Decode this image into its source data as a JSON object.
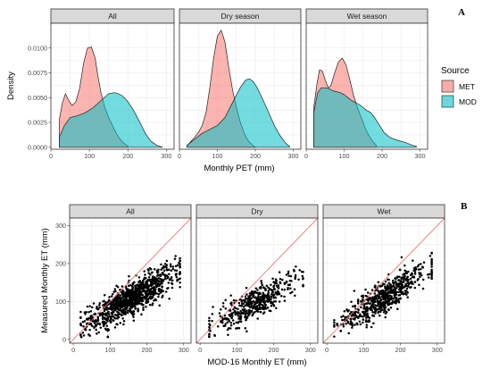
{
  "colors": {
    "met": "#F8766D",
    "mod": "#00BFC4",
    "strip_bg": "#d9d9d9",
    "panel_border": "#333333",
    "grid": "#ebebeb",
    "point": "#000000",
    "one_to_one": "#e8777b"
  },
  "panel_labels": {
    "a": "A",
    "b": "B"
  },
  "chart_data": [
    {
      "type": "area",
      "id": "density",
      "facets": [
        "All",
        "Dry season",
        "Wet season"
      ],
      "xlabel": "Monthly PET (mm)",
      "ylabel": "Density",
      "xlim": [
        0,
        320
      ],
      "ylim": [
        -0.0002,
        0.0125
      ],
      "xticks": [
        0,
        100,
        200,
        300
      ],
      "yticks": [
        0,
        0.0025,
        0.005,
        0.0075,
        0.01
      ],
      "ytick_labels": [
        "0.0000",
        "0.0025",
        "0.0050",
        "0.0075",
        "0.0100"
      ],
      "grid": true,
      "legend": {
        "title": "Source",
        "position": "right",
        "entries": [
          {
            "name": "MET",
            "color": "#F8766D"
          },
          {
            "name": "MOD",
            "color": "#00BFC4"
          }
        ]
      },
      "series_by_facet": [
        [
          {
            "name": "MET",
            "x": [
              22,
              30,
              38,
              45,
              55,
              65,
              75,
              85,
              95,
              105,
              115,
              122,
              130,
              140,
              150,
              160,
              170,
              180,
              190,
              200
            ],
            "y": [
              0.0028,
              0.0045,
              0.0054,
              0.0048,
              0.0042,
              0.0046,
              0.006,
              0.0085,
              0.01,
              0.0101,
              0.009,
              0.0072,
              0.0055,
              0.004,
              0.003,
              0.0022,
              0.0014,
              0.0008,
              0.0004,
              0.0001
            ]
          },
          {
            "name": "MOD",
            "x": [
              22,
              35,
              50,
              70,
              90,
              110,
              130,
              150,
              165,
              175,
              185,
              200,
              215,
              230,
              245,
              260,
              275,
              290
            ],
            "y": [
              0.001,
              0.0022,
              0.003,
              0.0032,
              0.0035,
              0.004,
              0.0047,
              0.0054,
              0.0055,
              0.0054,
              0.0052,
              0.0046,
              0.0037,
              0.0026,
              0.0014,
              0.0006,
              0.0002,
              0.0
            ]
          }
        ],
        [
          {
            "name": "MET",
            "x": [
              20,
              30,
              40,
              50,
              60,
              70,
              80,
              90,
              100,
              110,
              120,
              130,
              140,
              150,
              160,
              170,
              180,
              190,
              200
            ],
            "y": [
              0.0001,
              0.0006,
              0.001,
              0.0015,
              0.0022,
              0.0035,
              0.006,
              0.009,
              0.0112,
              0.0118,
              0.0106,
              0.008,
              0.0058,
              0.004,
              0.0026,
              0.0015,
              0.0007,
              0.0003,
              0.0
            ]
          },
          {
            "name": "MOD",
            "x": [
              20,
              40,
              60,
              80,
              100,
              120,
              140,
              160,
              175,
              185,
              195,
              205,
              220,
              235,
              250,
              265,
              280,
              290
            ],
            "y": [
              0.0002,
              0.0008,
              0.0014,
              0.0018,
              0.0022,
              0.003,
              0.0045,
              0.006,
              0.0068,
              0.0069,
              0.0066,
              0.006,
              0.0048,
              0.0035,
              0.0022,
              0.0012,
              0.0004,
              0.0001
            ]
          }
        ],
        [
          {
            "name": "MET",
            "x": [
              20,
              28,
              35,
              42,
              50,
              58,
              65,
              75,
              85,
              95,
              105,
              115,
              125,
              135,
              145,
              155,
              165,
              175,
              185
            ],
            "y": [
              0.004,
              0.0063,
              0.0078,
              0.0077,
              0.0068,
              0.006,
              0.0062,
              0.0075,
              0.0086,
              0.009,
              0.0083,
              0.0068,
              0.0052,
              0.004,
              0.003,
              0.002,
              0.0012,
              0.0006,
              0.0002
            ]
          },
          {
            "name": "MOD",
            "x": [
              20,
              30,
              40,
              50,
              60,
              70,
              80,
              90,
              100,
              110,
              120,
              130,
              140,
              150,
              160,
              170,
              180,
              190,
              205,
              220,
              240,
              260,
              280,
              290
            ],
            "y": [
              0.0035,
              0.0055,
              0.006,
              0.006,
              0.0059,
              0.0057,
              0.0056,
              0.0055,
              0.0053,
              0.005,
              0.0047,
              0.0045,
              0.0043,
              0.004,
              0.0037,
              0.0035,
              0.003,
              0.0024,
              0.0015,
              0.001,
              0.0007,
              0.0005,
              0.0002,
              0.0001
            ]
          }
        ]
      ]
    },
    {
      "type": "scatter",
      "id": "scatter",
      "facets": [
        "All",
        "Dry",
        "Wet"
      ],
      "xlabel": "MOD-16 Monthly ET (mm)",
      "ylabel": "Measured Monthly ET (mm)",
      "xlim": [
        -10,
        320
      ],
      "ylim": [
        -10,
        320
      ],
      "xticks": [
        0,
        100,
        200,
        300
      ],
      "yticks": [
        0,
        100,
        200,
        300
      ],
      "grid": true,
      "reference_line": {
        "slope": 1,
        "intercept": 0
      },
      "point_clouds": [
        {
          "n": 1000,
          "x_range": [
            20,
            290
          ],
          "slope": 0.55,
          "intercept": 22,
          "spread": 22
        },
        {
          "n": 450,
          "x_range": [
            25,
            280
          ],
          "slope": 0.52,
          "intercept": 18,
          "spread": 20
        },
        {
          "n": 650,
          "x_range": [
            20,
            285
          ],
          "slope": 0.58,
          "intercept": 22,
          "spread": 20
        }
      ]
    }
  ]
}
